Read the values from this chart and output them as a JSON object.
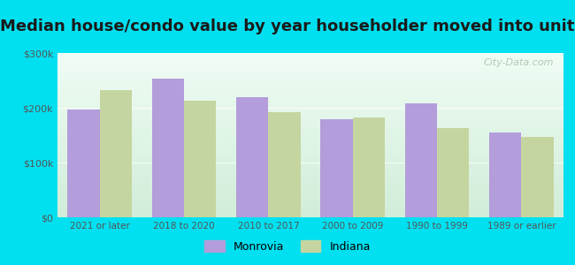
{
  "title": "Median house/condo value by year householder moved into unit",
  "categories": [
    "2021 or later",
    "2018 to 2020",
    "2010 to 2017",
    "2000 to 2009",
    "1990 to 1999",
    "1989 or earlier"
  ],
  "monrovia_values": [
    196000,
    253000,
    220000,
    179000,
    208000,
    155000
  ],
  "indiana_values": [
    232000,
    213000,
    192000,
    183000,
    163000,
    147000
  ],
  "monrovia_color": "#b39ddb",
  "indiana_color": "#c5d5a0",
  "background_outer": "#00e0f0",
  "background_inner_top": "#e8f5e9",
  "background_inner_bottom": "#c8e6c9",
  "ylim": [
    0,
    300000
  ],
  "yticks": [
    0,
    100000,
    200000,
    300000
  ],
  "ytick_labels": [
    "$0",
    "$100k",
    "$200k",
    "$300k"
  ],
  "title_fontsize": 13,
  "bar_width": 0.38,
  "legend_labels": [
    "Monrovia",
    "Indiana"
  ],
  "watermark": "City-Data.com"
}
